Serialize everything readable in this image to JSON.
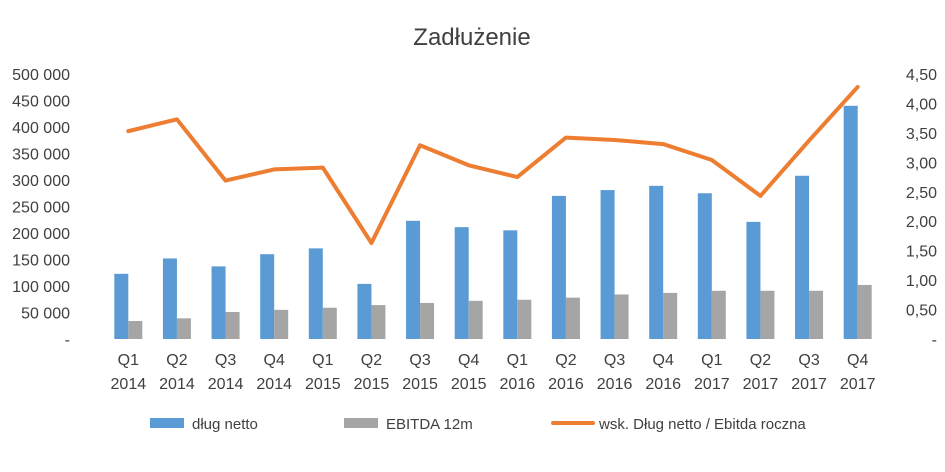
{
  "chart_data": {
    "type": "bar",
    "title": "Zadłużenie",
    "categories": [
      [
        "Q1",
        "2014"
      ],
      [
        "Q2",
        "2014"
      ],
      [
        "Q3",
        "2014"
      ],
      [
        "Q4",
        "2014"
      ],
      [
        "Q1",
        "2015"
      ],
      [
        "Q2",
        "2015"
      ],
      [
        "Q3",
        "2015"
      ],
      [
        "Q4",
        "2015"
      ],
      [
        "Q1",
        "2016"
      ],
      [
        "Q2",
        "2016"
      ],
      [
        "Q3",
        "2016"
      ],
      [
        "Q4",
        "2016"
      ],
      [
        "Q1",
        "2017"
      ],
      [
        "Q2",
        "2017"
      ],
      [
        "Q3",
        "2017"
      ],
      [
        "Q4",
        "2017"
      ]
    ],
    "y_left": {
      "min": 0,
      "max": 500000,
      "step": 50000,
      "tick_labels": [
        "-",
        "50 000",
        "100 000",
        "150 000",
        "200 000",
        "250 000",
        "300 000",
        "350 000",
        "400 000",
        "450 000",
        "500 000"
      ]
    },
    "y_right": {
      "min": 0,
      "max": 4.5,
      "step": 0.5,
      "tick_labels": [
        "-",
        "0,50",
        "1,00",
        "1,50",
        "2,00",
        "2,50",
        "3,00",
        "3,50",
        "4,00",
        "4,50"
      ]
    },
    "series": [
      {
        "name": "dług netto",
        "kind": "bar",
        "axis": "left",
        "color": "#5b9bd5",
        "values": [
          123000,
          152000,
          137000,
          160000,
          171000,
          104000,
          223000,
          211000,
          205000,
          270000,
          281000,
          289000,
          275000,
          221000,
          308000,
          440000
        ]
      },
      {
        "name": "EBITDA 12m",
        "kind": "bar",
        "axis": "left",
        "color": "#a5a5a5",
        "values": [
          34000,
          39000,
          51000,
          55000,
          59000,
          64000,
          68000,
          72000,
          74000,
          78000,
          84000,
          87000,
          91000,
          91000,
          91000,
          102000
        ]
      },
      {
        "name": "wsk. Dług netto / Ebitda roczna",
        "kind": "line",
        "axis": "right",
        "color": "#ed7d31",
        "values": [
          3.53,
          3.73,
          2.69,
          2.88,
          2.91,
          1.63,
          3.29,
          2.95,
          2.75,
          3.42,
          3.38,
          3.31,
          3.04,
          2.43,
          3.37,
          4.28
        ]
      }
    ],
    "legend_position": "bottom",
    "grid": false
  }
}
